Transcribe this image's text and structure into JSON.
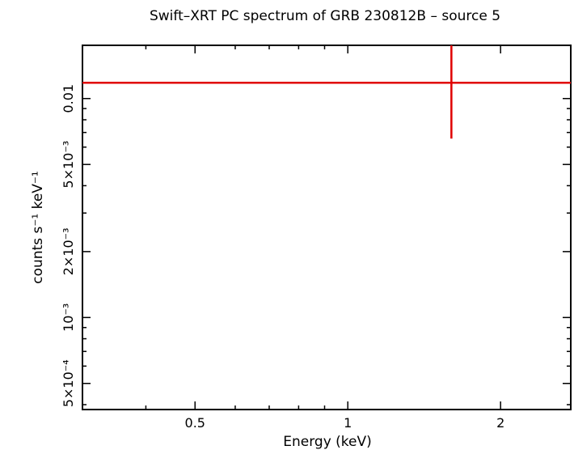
{
  "chart_data": {
    "type": "scatter",
    "title": "Swift–XRT PC spectrum of GRB 230812B – source 5",
    "xlabel": "Energy (keV)",
    "ylabel": "counts s⁻¹ keV⁻¹",
    "x_scale": "log",
    "y_scale": "log",
    "xlim": [
      0.3,
      2.75
    ],
    "ylim": [
      0.00038,
      0.0175
    ],
    "x_ticks": [
      {
        "value": 0.5,
        "label": "0.5"
      },
      {
        "value": 1,
        "label": "1"
      },
      {
        "value": 2,
        "label": "2"
      }
    ],
    "y_ticks": [
      {
        "value": 0.0005,
        "label": "5×10⁻⁴"
      },
      {
        "value": 0.001,
        "label": "10⁻³"
      },
      {
        "value": 0.002,
        "label": "2×10⁻³"
      },
      {
        "value": 0.005,
        "label": "5×10⁻³"
      },
      {
        "value": 0.01,
        "label": "0.01"
      }
    ],
    "series": [
      {
        "color": "#e00000",
        "points": [
          {
            "x": 0.9,
            "y": 0.0118,
            "x_err": [
              0.3,
              2.75
            ],
            "y_err": [
              0.00656,
              0.0175
            ]
          }
        ],
        "marker_point": {
          "x": 1.6,
          "y": 0.0118,
          "y_err": [
            0.00656,
            0.0175
          ]
        }
      }
    ],
    "grid": false
  }
}
